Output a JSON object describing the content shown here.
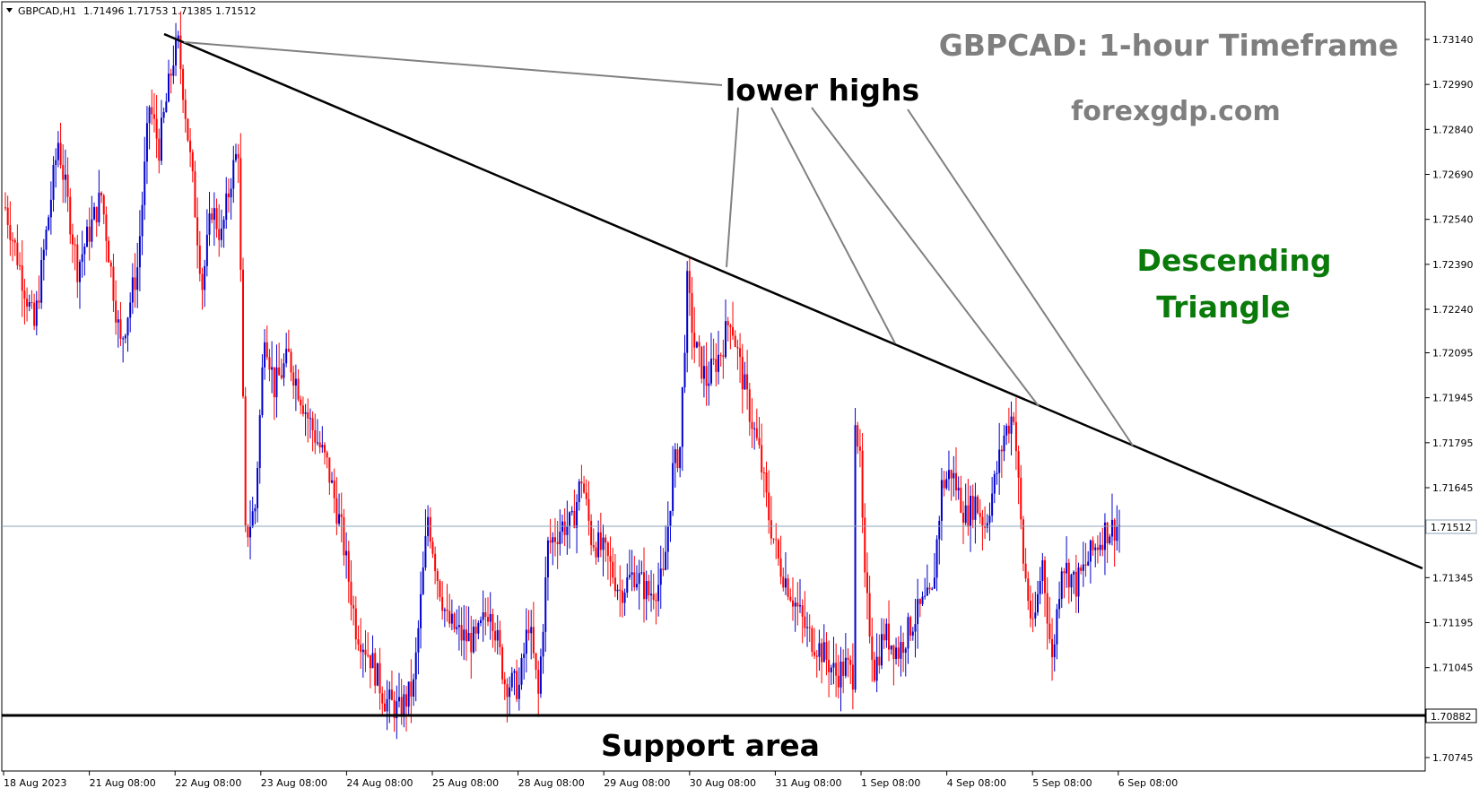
{
  "header": {
    "symbol": "GBPCAD,H1",
    "ohlc": "1.71496 1.71753 1.71385 1.71512"
  },
  "chart_data": {
    "type": "candlestick",
    "title": "GBPCAD: 1-hour Timeframe",
    "subtitle": "forexgdp.com",
    "pattern_label": [
      "Descending",
      "Triangle"
    ],
    "annotations": {
      "lower_highs": "lower highs",
      "support": "Support area"
    },
    "colors": {
      "bull": "#0000cc",
      "bear": "#ff0000",
      "title": "#7f7f7f",
      "pattern": "#0a7a0a",
      "trendline": "#000000",
      "pointer": "#808080"
    },
    "y_axis": {
      "ticks": [
        "1.73140",
        "1.72990",
        "1.72840",
        "1.72690",
        "1.72540",
        "1.72390",
        "1.72240",
        "1.72095",
        "1.71945",
        "1.71795",
        "1.71645",
        "1.71345",
        "1.71195",
        "1.71045",
        "1.70745"
      ],
      "ylim": [
        1.7066,
        1.7321
      ],
      "current_price": "1.71512",
      "support_price": "1.70882"
    },
    "x_axis": {
      "ticks": [
        "18 Aug 2023",
        "21 Aug 08:00",
        "22 Aug 08:00",
        "23 Aug 08:00",
        "24 Aug 08:00",
        "25 Aug 08:00",
        "28 Aug 08:00",
        "29 Aug 08:00",
        "30 Aug 08:00",
        "31 Aug 08:00",
        "1 Sep 08:00",
        "4 Sep 08:00",
        "5 Sep 08:00",
        "6 Sep 08:00"
      ]
    },
    "price_path": [
      [
        0,
        1.7258
      ],
      [
        12,
        1.7218
      ],
      [
        22,
        1.728
      ],
      [
        30,
        1.7238
      ],
      [
        40,
        1.7262
      ],
      [
        48,
        1.7212
      ],
      [
        55,
        1.7238
      ],
      [
        60,
        1.7292
      ],
      [
        64,
        1.7278
      ],
      [
        70,
        1.7308
      ],
      [
        72,
        1.7312
      ],
      [
        74,
        1.7298
      ],
      [
        78,
        1.7266
      ],
      [
        82,
        1.7232
      ],
      [
        86,
        1.7258
      ],
      [
        90,
        1.7248
      ],
      [
        94,
        1.7268
      ],
      [
        97,
        1.7278
      ],
      [
        100,
        1.7148
      ],
      [
        104,
        1.7158
      ],
      [
        108,
        1.7218
      ],
      [
        112,
        1.7198
      ],
      [
        118,
        1.7208
      ],
      [
        126,
        1.7188
      ],
      [
        134,
        1.7172
      ],
      [
        140,
        1.715
      ],
      [
        146,
        1.7118
      ],
      [
        152,
        1.7108
      ],
      [
        158,
        1.7094
      ],
      [
        164,
        1.709
      ],
      [
        170,
        1.7098
      ],
      [
        176,
        1.7155
      ],
      [
        180,
        1.7135
      ],
      [
        184,
        1.712
      ],
      [
        190,
        1.7115
      ],
      [
        196,
        1.7113
      ],
      [
        202,
        1.7126
      ],
      [
        208,
        1.71
      ],
      [
        214,
        1.7098
      ],
      [
        218,
        1.712
      ],
      [
        222,
        1.7095
      ],
      [
        226,
        1.7145
      ],
      [
        232,
        1.7152
      ],
      [
        236,
        1.7152
      ],
      [
        240,
        1.7168
      ],
      [
        244,
        1.7148
      ],
      [
        250,
        1.7142
      ],
      [
        256,
        1.713
      ],
      [
        262,
        1.7136
      ],
      [
        268,
        1.7129
      ],
      [
        274,
        1.7134
      ],
      [
        278,
        1.717
      ],
      [
        281,
        1.7178
      ],
      [
        284,
        1.7232
      ],
      [
        287,
        1.7212
      ],
      [
        292,
        1.72
      ],
      [
        298,
        1.721
      ],
      [
        302,
        1.7222
      ],
      [
        306,
        1.7205
      ],
      [
        310,
        1.719
      ],
      [
        314,
        1.7176
      ],
      [
        318,
        1.7155
      ],
      [
        322,
        1.714
      ],
      [
        328,
        1.7128
      ],
      [
        334,
        1.7116
      ],
      [
        340,
        1.711
      ],
      [
        346,
        1.7102
      ],
      [
        350,
        1.7105
      ],
      [
        353,
        1.7102
      ],
      [
        354,
        1.719
      ],
      [
        356,
        1.7172
      ],
      [
        358,
        1.7132
      ],
      [
        362,
        1.7104
      ],
      [
        366,
        1.7116
      ],
      [
        372,
        1.711
      ],
      [
        378,
        1.712
      ],
      [
        382,
        1.7125
      ],
      [
        386,
        1.7128
      ],
      [
        390,
        1.7165
      ],
      [
        394,
        1.717
      ],
      [
        400,
        1.7155
      ],
      [
        404,
        1.716
      ],
      [
        408,
        1.7152
      ],
      [
        412,
        1.7166
      ],
      [
        416,
        1.7182
      ],
      [
        420,
        1.719
      ],
      [
        424,
        1.714
      ],
      [
        428,
        1.7116
      ],
      [
        432,
        1.714
      ],
      [
        436,
        1.7106
      ],
      [
        440,
        1.714
      ],
      [
        446,
        1.7132
      ],
      [
        452,
        1.7142
      ],
      [
        458,
        1.715
      ],
      [
        464,
        1.7152
      ]
    ]
  }
}
